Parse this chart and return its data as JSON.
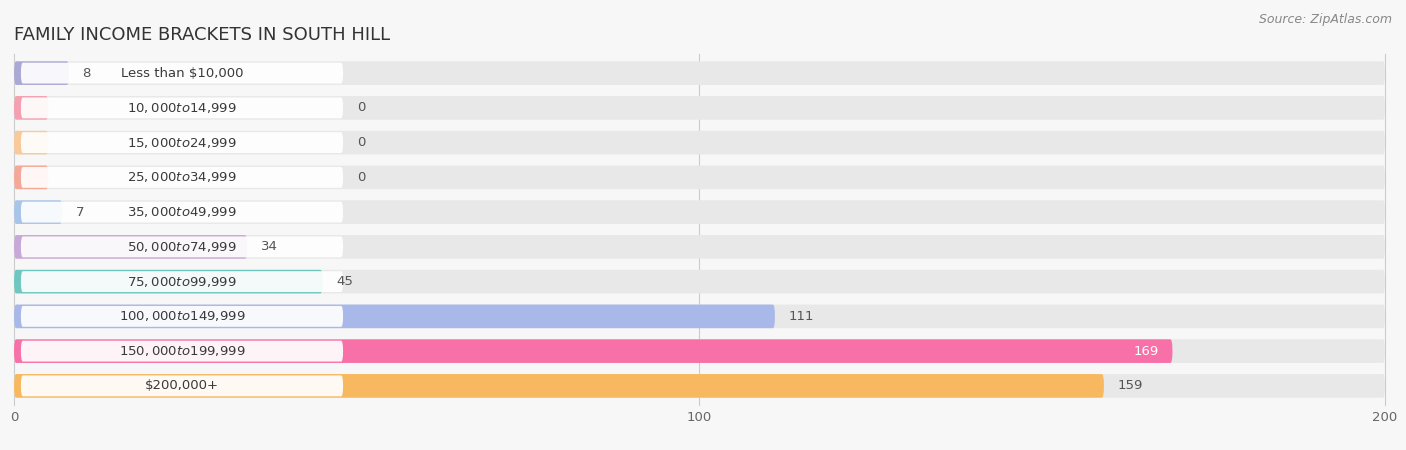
{
  "title": "FAMILY INCOME BRACKETS IN SOUTH HILL",
  "source": "Source: ZipAtlas.com",
  "categories": [
    "Less than $10,000",
    "$10,000 to $14,999",
    "$15,000 to $24,999",
    "$25,000 to $34,999",
    "$35,000 to $49,999",
    "$50,000 to $74,999",
    "$75,000 to $99,999",
    "$100,000 to $149,999",
    "$150,000 to $199,999",
    "$200,000+"
  ],
  "values": [
    8,
    0,
    0,
    0,
    7,
    34,
    45,
    111,
    169,
    159
  ],
  "bar_colors": [
    "#aaa8d4",
    "#f4a0b0",
    "#f8c99a",
    "#f4a898",
    "#a8c4e8",
    "#c8a8d8",
    "#6ec8c0",
    "#a8b8e8",
    "#f870a8",
    "#f8b860"
  ],
  "bar_bg_color": "#e8e8e8",
  "xlim": [
    0,
    200
  ],
  "xticks": [
    0,
    100,
    200
  ],
  "title_fontsize": 13,
  "label_fontsize": 9.5,
  "value_fontsize": 9.5,
  "source_fontsize": 9
}
